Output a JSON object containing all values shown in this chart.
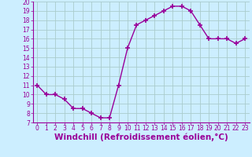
{
  "x": [
    0,
    1,
    2,
    3,
    4,
    5,
    6,
    7,
    8,
    9,
    10,
    11,
    12,
    13,
    14,
    15,
    16,
    17,
    18,
    19,
    20,
    21,
    22,
    23
  ],
  "y": [
    11,
    10,
    10,
    9.5,
    8.5,
    8.5,
    8,
    7.5,
    7.5,
    11,
    15,
    17.5,
    18,
    18.5,
    19,
    19.5,
    19.5,
    19,
    17.5,
    16,
    16,
    16,
    15.5,
    16
  ],
  "line_color": "#990099",
  "marker": "+",
  "marker_size": 4,
  "bg_color": "#cceeff",
  "grid_color": "#aacccc",
  "xlabel": "Windchill (Refroidissement éolien,°C)",
  "xlabel_color": "#990099",
  "ylim": [
    7,
    20
  ],
  "xlim": [
    -0.5,
    23.5
  ],
  "yticks": [
    7,
    8,
    9,
    10,
    11,
    12,
    13,
    14,
    15,
    16,
    17,
    18,
    19,
    20
  ],
  "xticks": [
    0,
    1,
    2,
    3,
    4,
    5,
    6,
    7,
    8,
    9,
    10,
    11,
    12,
    13,
    14,
    15,
    16,
    17,
    18,
    19,
    20,
    21,
    22,
    23
  ],
  "tick_color": "#990099",
  "tick_labelsize": 5.5,
  "xlabel_fontsize": 7.5,
  "linewidth": 1.0,
  "spine_color": "#990099"
}
